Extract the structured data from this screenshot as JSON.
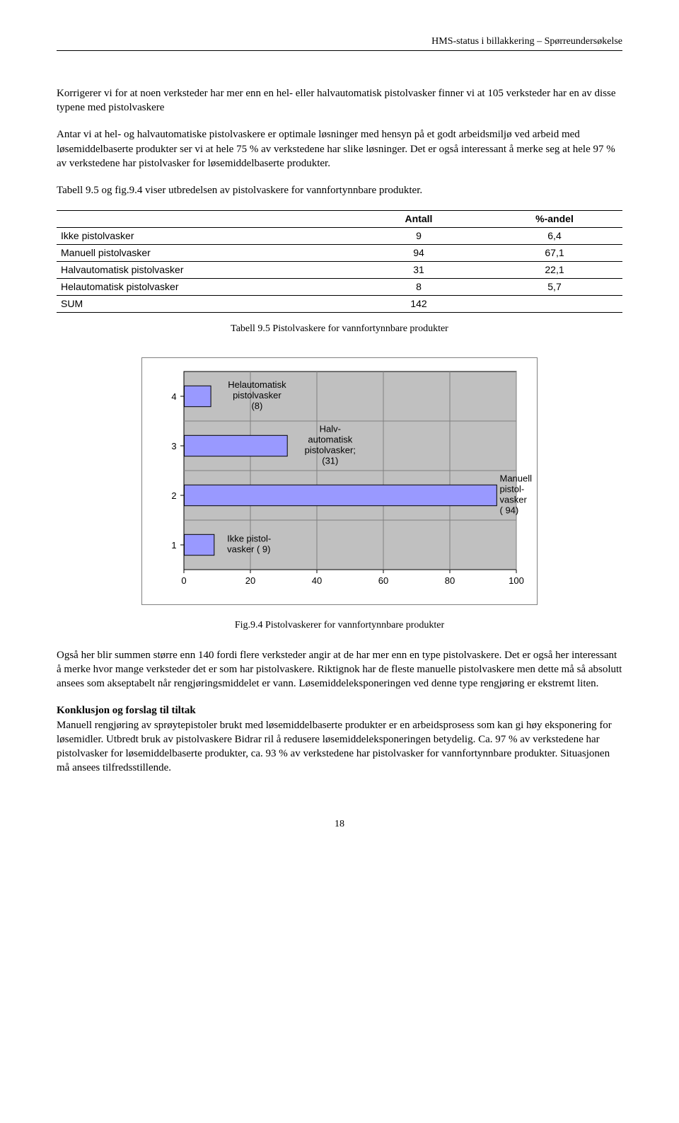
{
  "header": {
    "title": "HMS-status i billakkering – Spørreundersøkelse"
  },
  "para1": "Korrigerer vi for at noen verksteder har mer enn en hel- eller halvautomatisk pistolvasker finner vi at 105 verksteder har en av disse typene med pistolvaskere",
  "para2": "Antar vi at hel- og halvautomatiske pistolvaskere er optimale løsninger med hensyn på et godt arbeidsmiljø ved arbeid med løsemiddelbaserte produkter ser vi at hele 75 % av verkstedene har slike løsninger. Det er også interessant å merke seg at hele 97 % av verkstedene har pistolvasker for løsemiddelbaserte produkter.",
  "para3": "Tabell 9.5 og fig.9.4 viser utbredelsen av pistolvaskere for vannfortynnbare produkter.",
  "table": {
    "col1": "Antall",
    "col2": "%-andel",
    "rows": [
      {
        "label": "Ikke pistolvasker",
        "antall": "9",
        "andel": "6,4"
      },
      {
        "label": "Manuell pistolvasker",
        "antall": "94",
        "andel": "67,1"
      },
      {
        "label": "Halvautomatisk pistolvasker",
        "antall": "31",
        "andel": "22,1"
      },
      {
        "label": "Helautomatisk pistolvasker",
        "antall": "8",
        "andel": "5,7"
      },
      {
        "label": "SUM",
        "antall": "142",
        "andel": ""
      }
    ],
    "caption": "Tabell 9.5 Pistolvaskere for vannfortynnbare produkter"
  },
  "chart": {
    "type": "bar-horizontal",
    "plot_bg": "#c0c0c0",
    "outer_bg": "#ffffff",
    "grid_color": "#808080",
    "border_color": "#000000",
    "bar_fill": "#9999ff",
    "bar_stroke": "#000000",
    "font_family": "Arial",
    "axis_fontsize": 13,
    "label_fontsize": 13,
    "xlim": [
      0,
      100
    ],
    "xtick_step": 20,
    "xticks": [
      "0",
      "20",
      "40",
      "60",
      "80",
      "100"
    ],
    "ylabels": [
      "1",
      "2",
      "3",
      "4"
    ],
    "bars": [
      {
        "y": 4,
        "value": 8,
        "label_lines": [
          "Helautomatisk",
          "pistolvasker",
          "(8)"
        ],
        "label_align": "center",
        "label_x": 22
      },
      {
        "y": 3,
        "value": 31,
        "label_lines": [
          "Halv-",
          "automatisk",
          "pistolvasker;",
          "(31)"
        ],
        "label_align": "center",
        "label_x": 44
      },
      {
        "y": 2,
        "value": 94,
        "label_lines": [
          "Manuell",
          "pistol-",
          "vasker",
          "( 94)"
        ],
        "label_align": "left",
        "label_x": 95
      },
      {
        "y": 1,
        "value": 9,
        "label_lines": [
          "Ikke pistol-",
          "vasker ( 9)"
        ],
        "label_align": "left",
        "label_x": 13
      }
    ],
    "caption": "Fig.9.4 Pistolvaskerer for vannfortynnbare produkter"
  },
  "para4": "Også her blir summen større enn 140 fordi flere verksteder angir at de har mer enn en type pistolvaskere. Det er også her interessant å merke hvor mange verksteder det er som har pistolvaskere. Riktignok har de fleste manuelle pistolvaskere men dette må så absolutt ansees som akseptabelt når rengjøringsmiddelet er vann. Løsemiddeleksponeringen ved denne type rengjøring er ekstremt liten.",
  "konklusjon_heading": "Konklusjon og forslag til tiltak",
  "para5": "Manuell rengjøring av sprøytepistoler brukt med løsemiddelbaserte produkter er en arbeidsprosess som kan gi høy eksponering for løsemidler. Utbredt bruk av pistolvaskere Bidrar ril å redusere løsemiddeleksponeringen betydelig. Ca. 97 % av verkstedene har pistolvasker for løsemiddelbaserte produkter, ca. 93 % av verkstedene har pistolvasker for vannfortynnbare produkter. Situasjonen må ansees tilfredsstillende.",
  "page_number": "18"
}
